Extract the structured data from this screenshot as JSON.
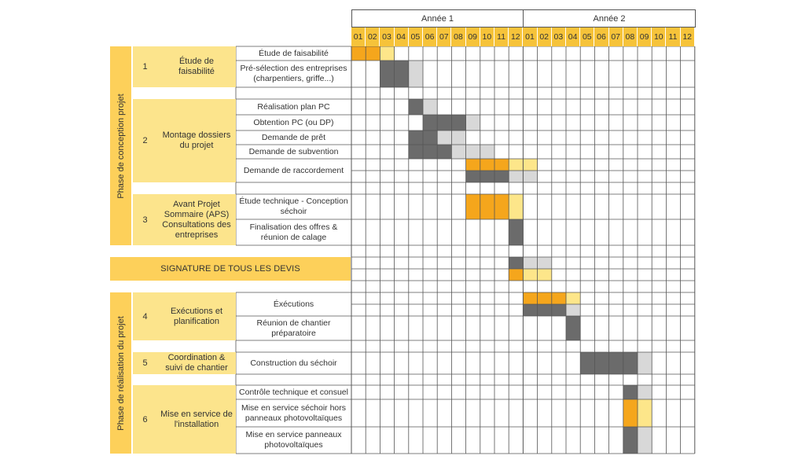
{
  "years": [
    "Année 1",
    "Année 2"
  ],
  "months": [
    "01",
    "02",
    "03",
    "04",
    "05",
    "06",
    "07",
    "08",
    "09",
    "10",
    "11",
    "12"
  ],
  "phases": [
    {
      "label": "Phase de conception projet"
    },
    {
      "label": "Phase de réalisation du projet"
    }
  ],
  "groups": [
    {
      "num": "1",
      "label": "Étude de faisabilité"
    },
    {
      "num": "2",
      "label": "Montage dossiers du projet"
    },
    {
      "num": "3",
      "label": "Avant Projet Sommaire (APS) Consultations des entreprises"
    },
    {
      "num": "4",
      "label": "Exécutions et planification"
    },
    {
      "num": "5",
      "label": "Coordination & suivi de chantier"
    },
    {
      "num": "6",
      "label": "Mise en service de l'installation"
    }
  ],
  "signature": "SIGNATURE DE TOUS LES DEVIS",
  "tasks": [
    {
      "label": "Étude de faisabilité",
      "group": "1"
    },
    {
      "label": "Pré-sélection des entreprises (charpentiers, griffe...)",
      "group": "1"
    },
    {
      "label": "Réalisation plan PC",
      "group": "2"
    },
    {
      "label": "Obtention PC (ou DP)",
      "group": "2"
    },
    {
      "label": "Demande de prêt",
      "group": "2"
    },
    {
      "label": "Demande de subvention",
      "group": "2"
    },
    {
      "label": "Demande de raccordement",
      "group": "2"
    },
    {
      "label": "Étude technique - Conception séchoir",
      "group": "3"
    },
    {
      "label": "Finalisation des offres & réunion de calage",
      "group": "3"
    },
    {
      "label": "Éxécutions",
      "group": "4"
    },
    {
      "label": "Réunion de chantier préparatoire",
      "group": "4"
    },
    {
      "label": "Construction du séchoir",
      "group": "5"
    },
    {
      "label": "Contrôle technique et consuel",
      "group": "6"
    },
    {
      "label": "Mise en service séchoir hors panneaux photovoltaïques",
      "group": "6"
    },
    {
      "label": "Mise en service panneaux photovoltaïques",
      "group": "6"
    }
  ],
  "legend_colors": {
    "orange": "#f5a61c",
    "light_yellow": "#fde68a",
    "dark_grey": "#6b6b6b",
    "light_grey": "#d8d8d8",
    "phase_yellow": "#fdd05a",
    "group_yellow": "#fce48c",
    "month_yellow": "#f6c33a"
  },
  "bars": [
    {
      "task": "Étude de faisabilité",
      "row": "full",
      "cells": [
        [
          1,
          "orange"
        ],
        [
          2,
          "orange"
        ],
        [
          3,
          "light_yellow"
        ]
      ]
    },
    {
      "task": "Pré-sélection des entreprises (charpentiers, griffe...)",
      "row": "full",
      "cells": [
        [
          3,
          "dark_grey"
        ],
        [
          4,
          "dark_grey"
        ],
        [
          5,
          "light_grey"
        ]
      ]
    },
    {
      "task": "Réalisation plan PC",
      "row": "full",
      "cells": [
        [
          5,
          "dark_grey"
        ],
        [
          6,
          "light_grey"
        ]
      ]
    },
    {
      "task": "Obtention PC (ou DP)",
      "row": "full",
      "cells": [
        [
          6,
          "dark_grey"
        ],
        [
          7,
          "dark_grey"
        ],
        [
          8,
          "dark_grey"
        ],
        [
          9,
          "light_grey"
        ]
      ]
    },
    {
      "task": "Demande de prêt",
      "row": "full",
      "cells": [
        [
          5,
          "dark_grey"
        ],
        [
          6,
          "dark_grey"
        ],
        [
          7,
          "light_grey"
        ],
        [
          8,
          "light_grey"
        ]
      ]
    },
    {
      "task": "Demande de subvention",
      "row": "full",
      "cells": [
        [
          5,
          "dark_grey"
        ],
        [
          6,
          "dark_grey"
        ],
        [
          7,
          "dark_grey"
        ],
        [
          8,
          "light_grey"
        ],
        [
          9,
          "light_grey"
        ],
        [
          10,
          "light_grey"
        ]
      ]
    },
    {
      "task": "Demande de raccordement",
      "row": "top",
      "cells": [
        [
          9,
          "orange"
        ],
        [
          10,
          "orange"
        ],
        [
          11,
          "orange"
        ],
        [
          12,
          "light_yellow"
        ],
        [
          13,
          "light_yellow"
        ]
      ]
    },
    {
      "task": "Demande de raccordement",
      "row": "bottom",
      "cells": [
        [
          9,
          "dark_grey"
        ],
        [
          10,
          "dark_grey"
        ],
        [
          11,
          "dark_grey"
        ],
        [
          12,
          "light_grey"
        ],
        [
          13,
          "light_grey"
        ]
      ]
    },
    {
      "task": "Étude technique - Conception séchoir",
      "row": "full",
      "cells": [
        [
          9,
          "orange"
        ],
        [
          10,
          "orange"
        ],
        [
          11,
          "orange"
        ],
        [
          12,
          "light_yellow"
        ]
      ]
    },
    {
      "task": "Finalisation des offres & réunion de calage",
      "row": "full",
      "cells": [
        [
          12,
          "dark_grey"
        ]
      ]
    },
    {
      "task": "SIGNATURE DE TOUS LES DEVIS",
      "row": "top",
      "cells": [
        [
          12,
          "dark_grey"
        ],
        [
          13,
          "light_grey"
        ],
        [
          14,
          "light_grey"
        ]
      ]
    },
    {
      "task": "SIGNATURE DE TOUS LES DEVIS",
      "row": "bottom",
      "cells": [
        [
          12,
          "orange"
        ],
        [
          13,
          "light_yellow"
        ],
        [
          14,
          "light_yellow"
        ]
      ]
    },
    {
      "task": "Éxécutions",
      "row": "top",
      "cells": [
        [
          13,
          "orange"
        ],
        [
          14,
          "orange"
        ],
        [
          15,
          "orange"
        ],
        [
          16,
          "light_yellow"
        ]
      ]
    },
    {
      "task": "Éxécutions",
      "row": "bottom",
      "cells": [
        [
          13,
          "dark_grey"
        ],
        [
          14,
          "dark_grey"
        ],
        [
          15,
          "dark_grey"
        ],
        [
          16,
          "light_grey"
        ]
      ]
    },
    {
      "task": "Réunion de chantier préparatoire",
      "row": "full",
      "cells": [
        [
          16,
          "dark_grey"
        ]
      ]
    },
    {
      "task": "Construction du séchoir",
      "row": "full",
      "cells": [
        [
          17,
          "dark_grey"
        ],
        [
          18,
          "dark_grey"
        ],
        [
          19,
          "dark_grey"
        ],
        [
          20,
          "dark_grey"
        ],
        [
          21,
          "light_grey"
        ]
      ]
    },
    {
      "task": "Contrôle technique et consuel",
      "row": "full",
      "cells": [
        [
          20,
          "dark_grey"
        ],
        [
          21,
          "light_grey"
        ]
      ]
    },
    {
      "task": "Mise en service séchoir hors panneaux photovoltaïques",
      "row": "full",
      "cells": [
        [
          20,
          "orange"
        ],
        [
          21,
          "light_yellow"
        ]
      ]
    },
    {
      "task": "Mise en service panneaux photovoltaïques",
      "row": "full",
      "cells": [
        [
          20,
          "dark_grey"
        ],
        [
          21,
          "light_grey"
        ]
      ]
    }
  ]
}
